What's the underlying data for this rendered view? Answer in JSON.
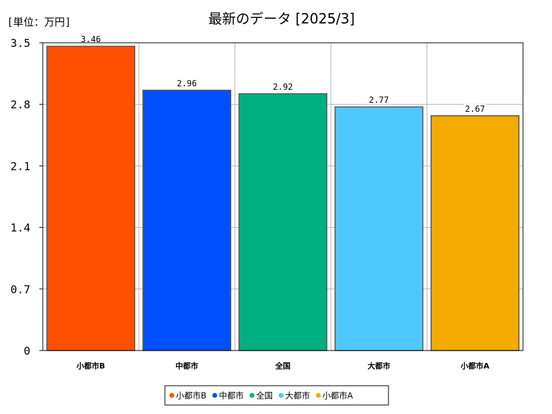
{
  "chart_data": {
    "type": "bar",
    "title": "最新のデータ [2025/3]",
    "unit_label": "[単位：万円]",
    "xlabel": "",
    "ylabel": "",
    "categories": [
      "小都市B",
      "中都市",
      "全国",
      "大都市",
      "小都市A"
    ],
    "values": [
      3.46,
      2.96,
      2.92,
      2.77,
      2.67
    ],
    "value_labels": [
      "3.46",
      "2.96",
      "2.92",
      "2.77",
      "2.67"
    ],
    "colors": [
      "#ff5000",
      "#0050ff",
      "#00b080",
      "#50c8ff",
      "#f5aa00"
    ],
    "ylim": [
      0,
      3.5
    ],
    "yticks": [
      0,
      0.7,
      1.4,
      2.1,
      2.8,
      3.5
    ],
    "ytick_labels": [
      "0",
      "0.7",
      "1.4",
      "2.1",
      "2.8",
      "3.5"
    ],
    "grid": true,
    "legend_position": "bottom-center",
    "legend": [
      "小都市B",
      "中都市",
      "全国",
      "大都市",
      "小都市A"
    ]
  }
}
